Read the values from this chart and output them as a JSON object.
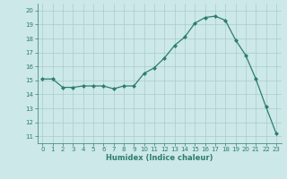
{
  "x": [
    0,
    1,
    2,
    3,
    4,
    5,
    6,
    7,
    8,
    9,
    10,
    11,
    12,
    13,
    14,
    15,
    16,
    17,
    18,
    19,
    20,
    21,
    22,
    23
  ],
  "y": [
    15.1,
    15.1,
    14.5,
    14.5,
    14.6,
    14.6,
    14.6,
    14.4,
    14.6,
    14.6,
    15.5,
    15.9,
    16.6,
    17.5,
    18.1,
    19.1,
    19.5,
    19.6,
    19.3,
    17.9,
    16.8,
    15.1,
    13.1,
    11.2
  ],
  "xlabel": "Humidex (Indice chaleur)",
  "ylim": [
    10.5,
    20.5
  ],
  "yticks": [
    11,
    12,
    13,
    14,
    15,
    16,
    17,
    18,
    19,
    20
  ],
  "xticks": [
    0,
    1,
    2,
    3,
    4,
    5,
    6,
    7,
    8,
    9,
    10,
    11,
    12,
    13,
    14,
    15,
    16,
    17,
    18,
    19,
    20,
    21,
    22,
    23
  ],
  "line_color": "#2e7d6e",
  "marker": "D",
  "marker_size": 2,
  "bg_color": "#cce8e8",
  "grid_color": "#aacccc",
  "font_size_ticks": 5,
  "font_size_xlabel": 6
}
